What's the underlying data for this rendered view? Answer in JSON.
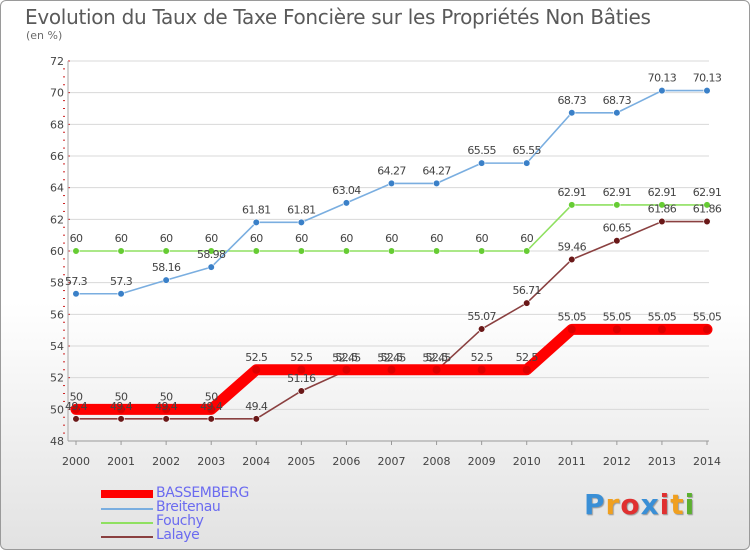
{
  "title": "Evolution du Taux de Taxe Foncière sur les Propriétés Non Bâties",
  "subtitle": "(en %)",
  "logo": {
    "text": "Proxiti",
    "letter_colors": [
      "#3a8fd6",
      "#f0a020",
      "#e03030",
      "#3a8fd6",
      "#e03030",
      "#f0a020",
      "#5cb030"
    ]
  },
  "chart_data": {
    "type": "line",
    "title": "Evolution du Taux de Taxe Foncière sur les Propriétés Non Bâties",
    "ylabel": "(en %)",
    "xlabel": "",
    "ylim": [
      48,
      72
    ],
    "yticks": [
      48,
      50,
      52,
      54,
      56,
      58,
      60,
      62,
      64,
      66,
      68,
      70,
      72
    ],
    "categories": [
      "2000",
      "2001",
      "2002",
      "2003",
      "2004",
      "2005",
      "2006",
      "2007",
      "2008",
      "2009",
      "2010",
      "2011",
      "2012",
      "2013",
      "2014"
    ],
    "series": [
      {
        "name": "BASSEMBERG",
        "color": "#ff0000",
        "marker": "#dd0000",
        "values": [
          50,
          50,
          50,
          50,
          52.5,
          52.5,
          52.5,
          52.5,
          52.5,
          52.5,
          52.5,
          55.05,
          55.05,
          55.05,
          55.05
        ]
      },
      {
        "name": "Breitenau",
        "color": "#7aaee0",
        "marker": "#3a80c8",
        "values": [
          57.3,
          57.3,
          58.16,
          58.98,
          61.81,
          61.81,
          63.04,
          64.27,
          64.27,
          65.55,
          65.55,
          68.73,
          68.73,
          70.13,
          70.13
        ]
      },
      {
        "name": "Fouchy",
        "color": "#8fe060",
        "marker": "#66cc33",
        "values": [
          60,
          60,
          60,
          60,
          60,
          60,
          60,
          60,
          60,
          60,
          60,
          62.91,
          62.91,
          62.91,
          62.91
        ]
      },
      {
        "name": "Lalaye",
        "color": "#8a4040",
        "marker": "#6a1818",
        "values": [
          49.4,
          49.4,
          49.4,
          49.4,
          49.4,
          51.16,
          52.45,
          52.45,
          52.45,
          55.07,
          56.71,
          59.46,
          60.65,
          61.86,
          61.86
        ]
      }
    ],
    "data_labels": {
      "BASSEMBERG": [
        "50",
        "50",
        "50",
        "50",
        "52.5",
        "52.5",
        "52.5",
        "52.5",
        "52.5",
        "52.5",
        "52.5",
        "55.05",
        "55.05",
        "55.05",
        "55.05"
      ],
      "Breitenau": [
        "57.3",
        "57.3",
        "58.16",
        "58.98",
        "61.81",
        "61.81",
        "63.04",
        "64.27",
        "64.27",
        "65.55",
        "65.55",
        "68.73",
        "68.73",
        "70.13",
        "70.13"
      ],
      "Fouchy": [
        "60",
        "60",
        "60",
        "60",
        "60",
        "60",
        "60",
        "60",
        "60",
        "60",
        "60",
        "62.91",
        "62.91",
        "62.91",
        "62.91"
      ],
      "Lalaye": [
        "49.4",
        "49.4",
        "49.4",
        "49.4",
        "49.4",
        "51.16",
        "52.45",
        "52.45",
        "52.45",
        "55.07",
        "56.71",
        "59.46",
        "60.65",
        "61.86",
        "61.86"
      ]
    },
    "legend": {
      "position": "bottom-left",
      "entries": [
        "BASSEMBERG",
        "Breitenau",
        "Fouchy",
        "Lalaye"
      ]
    }
  }
}
